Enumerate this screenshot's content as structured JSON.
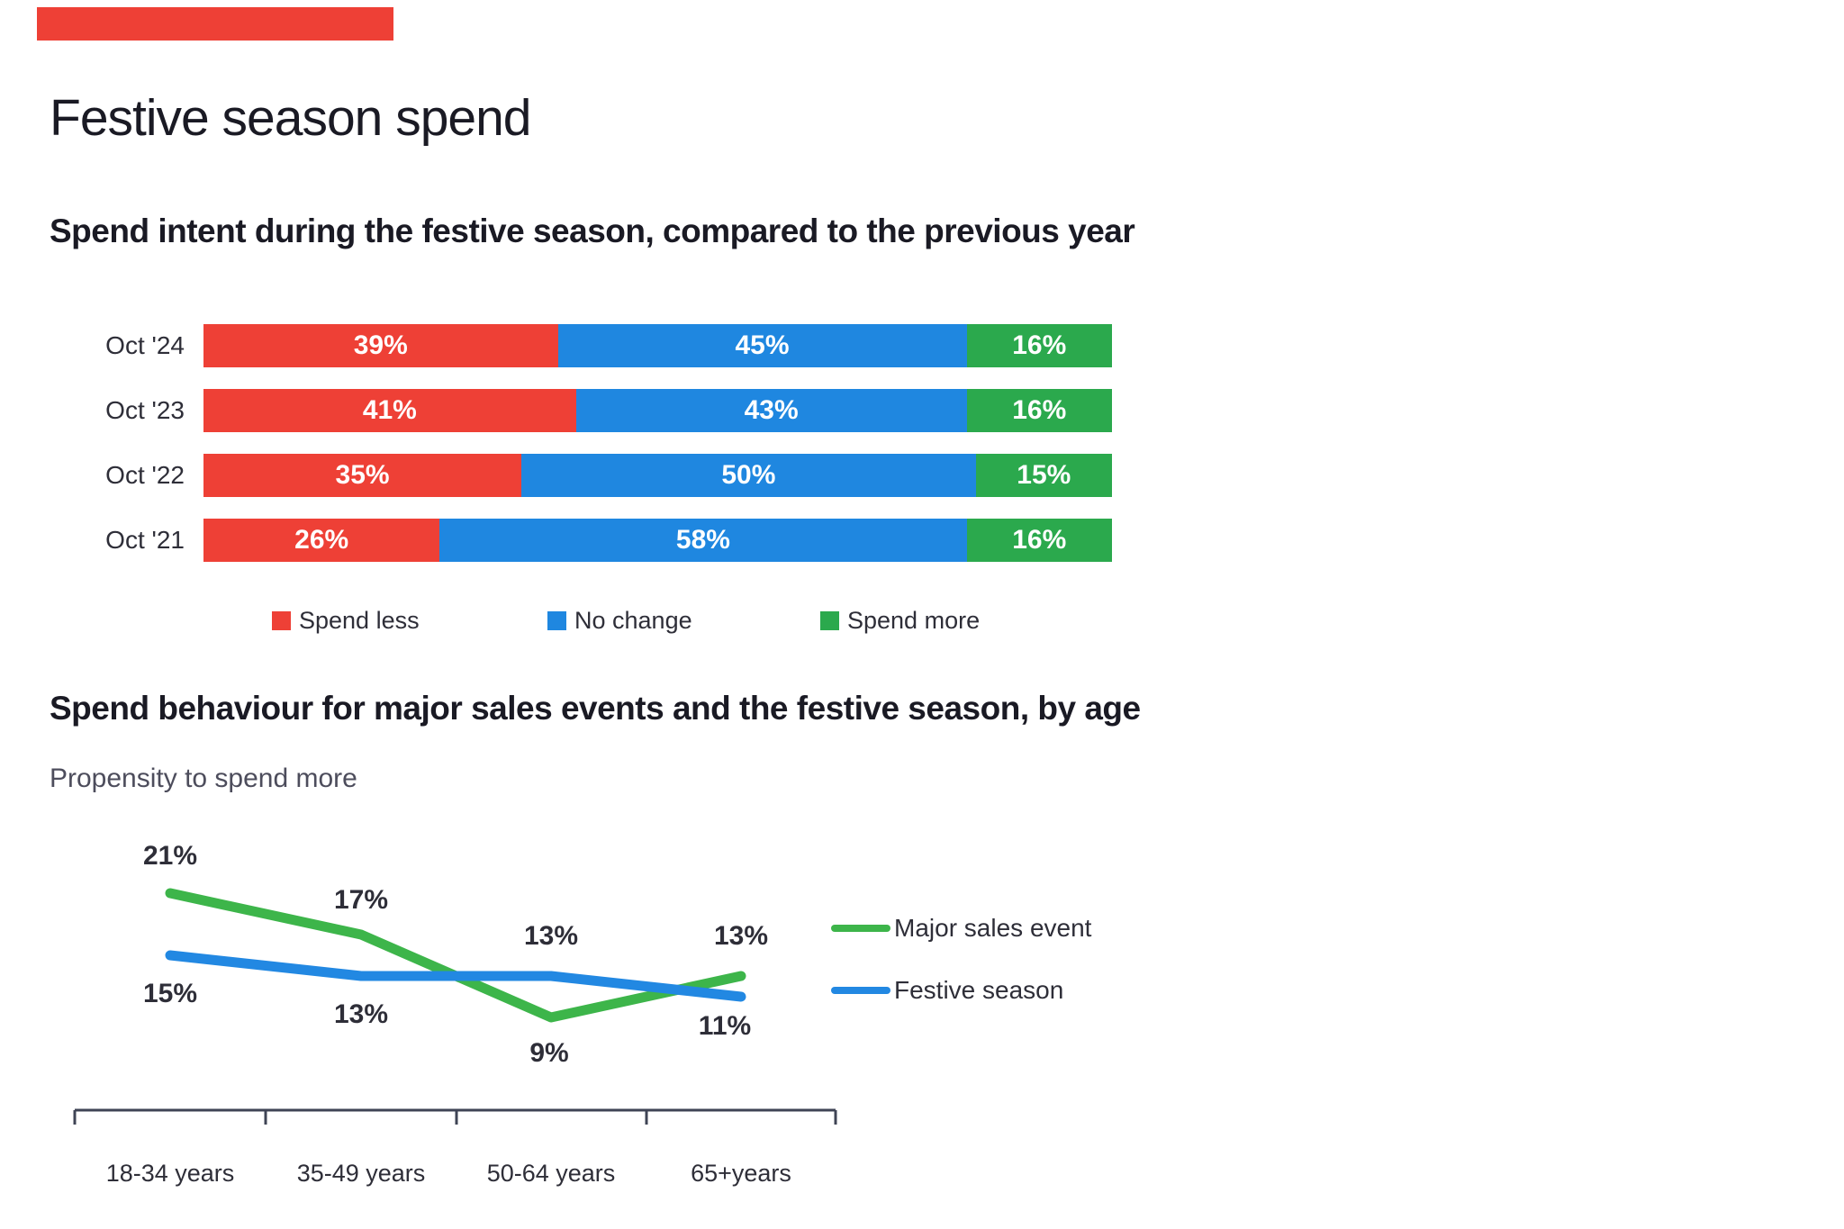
{
  "page_title": "Festive season spend",
  "accent_color": "#EE4036",
  "chart_data": [
    {
      "type": "bar",
      "variant": "horizontal-stacked",
      "title": "Spend intent during the festive season, compared to the previous year",
      "categories": [
        "Oct '24",
        "Oct '23",
        "Oct '22",
        "Oct '21"
      ],
      "series": [
        {
          "name": "Spend less",
          "color": "#EE4036",
          "values": [
            39,
            41,
            35,
            26
          ]
        },
        {
          "name": "No change",
          "color": "#1F87E0",
          "values": [
            45,
            43,
            50,
            58
          ]
        },
        {
          "name": "Spend more",
          "color": "#2BA94D",
          "values": [
            16,
            16,
            15,
            16
          ]
        }
      ],
      "value_suffix": "%",
      "xlim": [
        0,
        100
      ],
      "data_labels": "inside-white-bold",
      "legend_position": "bottom",
      "grid": false
    },
    {
      "type": "line",
      "title": "Spend behaviour for major sales events and the festive season, by age",
      "subtitle": "Propensity to spend more",
      "categories": [
        "18-34 years",
        "35-49 years",
        "50-64 years",
        "65+years"
      ],
      "series": [
        {
          "name": "Major sales event",
          "color": "#3DB54A",
          "values": [
            21,
            17,
            9,
            13
          ],
          "label_offsets": [
            [
              0,
              -41
            ],
            [
              0,
              -38
            ],
            [
              -2,
              40
            ],
            [
              0,
              -44
            ]
          ]
        },
        {
          "name": "Festive season",
          "color": "#2288E2",
          "values": [
            15,
            13,
            13,
            11
          ],
          "label_offsets": [
            [
              0,
              43
            ],
            [
              0,
              43
            ],
            [
              0,
              -44
            ],
            [
              -18,
              33
            ]
          ]
        }
      ],
      "value_suffix": "%",
      "ylim_hint": [
        5,
        23
      ],
      "legend_position": "right",
      "axis": {
        "baseline": true,
        "ticks": true,
        "gridlines": false
      },
      "axis_color": "#3F4455"
    }
  ]
}
